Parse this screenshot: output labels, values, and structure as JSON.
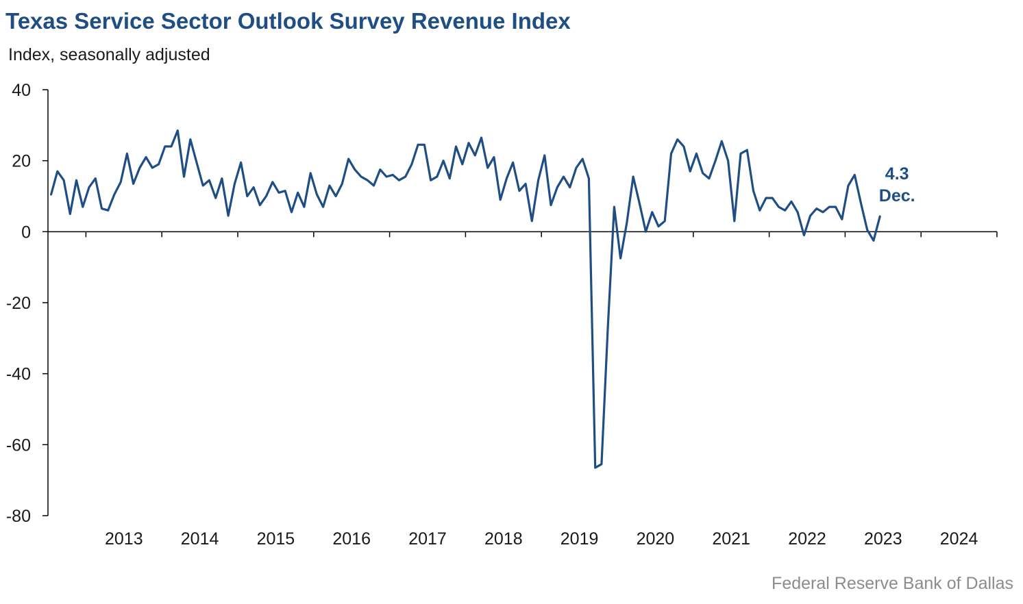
{
  "title": "Texas Service Sector Outlook Survey Revenue Index",
  "subtitle": "Index, seasonally adjusted",
  "source": "Federal Reserve Bank of Dallas",
  "colors": {
    "title": "#1f4e84",
    "line": "#1f4e84",
    "axis": "#000000",
    "source": "#8c8c8c"
  },
  "chart_data": {
    "type": "line",
    "title": "Texas Service Sector Outlook Survey Revenue Index",
    "ylabel": "Index, seasonally adjusted",
    "ylim": [
      -80,
      40
    ],
    "yticks": [
      40,
      20,
      0,
      -20,
      -40,
      -60,
      -80
    ],
    "xlim": [
      "2012-07",
      "2024-12"
    ],
    "xtick_labels": [
      "2013",
      "2014",
      "2015",
      "2016",
      "2017",
      "2018",
      "2019",
      "2020",
      "2021",
      "2022",
      "2023",
      "2024"
    ],
    "grid": false,
    "start": "2012-07",
    "series": [
      {
        "values": [
          10.5,
          17,
          14.5,
          5,
          14.5,
          7,
          12.5,
          15,
          6.5,
          6,
          10.5,
          14,
          22,
          13.5,
          18,
          21,
          18,
          19,
          24,
          24,
          28.5,
          15.5,
          26,
          19.5,
          13,
          14.5,
          9.5,
          15,
          4.5,
          13.5,
          19.5,
          10,
          12.5,
          7.5,
          10,
          14,
          11,
          11.5,
          5.5,
          11,
          7,
          16.5,
          10.5,
          7,
          13,
          10,
          13.5,
          20.5,
          17.5,
          15.5,
          14.5,
          13,
          17.5,
          15.5,
          16,
          14.5,
          15.5,
          19,
          24.5,
          24.5,
          14.5,
          15.5,
          20,
          15,
          24,
          19,
          25,
          21.5,
          26.5,
          18,
          21,
          9,
          15,
          19.5,
          11.5,
          13.5,
          3,
          14.5,
          21.5,
          7.5,
          12.5,
          15.5,
          12.5,
          18,
          20.5,
          15,
          -66.5,
          -65.5,
          -27,
          7,
          -7.5,
          2.5,
          15.5,
          8,
          0,
          5.5,
          1.5,
          3,
          22,
          26,
          24,
          17,
          22,
          16.5,
          15,
          20,
          25.5,
          20,
          3,
          22,
          23,
          11.5,
          6,
          9.5,
          9.5,
          7,
          6,
          8.5,
          5.5,
          -1,
          4.5,
          6.5,
          5.5,
          7,
          7,
          3.5,
          13,
          16,
          8,
          0.5,
          -2.5,
          4.3
        ]
      }
    ],
    "annotations": [
      {
        "value": "4.3",
        "label": "Dec."
      }
    ]
  }
}
